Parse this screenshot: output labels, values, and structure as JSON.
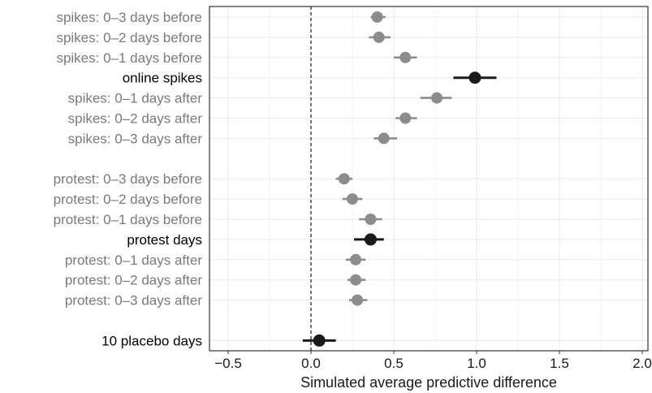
{
  "chart_data": {
    "type": "scatter",
    "subtype": "dot-whisker",
    "title": "",
    "xlabel": "Simulated average predictive difference",
    "ylabel": "",
    "xlim": [
      -0.6,
      2.05
    ],
    "xticks": [
      -0.5,
      0.0,
      0.5,
      1.0,
      1.5,
      2.0
    ],
    "xtick_labels": [
      "−0.5",
      "0.0",
      "0.5",
      "1.0",
      "1.5",
      "2.0"
    ],
    "reference_line": {
      "x": 0.0,
      "style": "dashed"
    },
    "grid": true,
    "legend": "none",
    "colors": {
      "main": "#1a1a1a",
      "secondary": "#8c8c8c",
      "grid": "#ebebeb",
      "panel_border": "#333333"
    },
    "rows": [
      {
        "label": "spikes: 0–3 days before",
        "estimate": 0.4,
        "lower": 0.36,
        "upper": 0.45,
        "highlight": false
      },
      {
        "label": "spikes: 0–2 days before",
        "estimate": 0.41,
        "lower": 0.35,
        "upper": 0.48,
        "highlight": false
      },
      {
        "label": "spikes: 0–1 days before",
        "estimate": 0.57,
        "lower": 0.5,
        "upper": 0.64,
        "highlight": false
      },
      {
        "label": "online spikes",
        "estimate": 0.99,
        "lower": 0.86,
        "upper": 1.12,
        "highlight": true
      },
      {
        "label": "spikes: 0–1 days after",
        "estimate": 0.76,
        "lower": 0.66,
        "upper": 0.85,
        "highlight": false
      },
      {
        "label": "spikes: 0–2 days after",
        "estimate": 0.57,
        "lower": 0.51,
        "upper": 0.64,
        "highlight": false
      },
      {
        "label": "spikes: 0–3 days after",
        "estimate": 0.44,
        "lower": 0.38,
        "upper": 0.52,
        "highlight": false
      },
      {
        "label": "protest: 0–3 days before",
        "estimate": 0.2,
        "lower": 0.15,
        "upper": 0.25,
        "highlight": false
      },
      {
        "label": "protest: 0–2 days before",
        "estimate": 0.25,
        "lower": 0.19,
        "upper": 0.31,
        "highlight": false
      },
      {
        "label": "protest: 0–1 days before",
        "estimate": 0.36,
        "lower": 0.29,
        "upper": 0.43,
        "highlight": false
      },
      {
        "label": "protest days",
        "estimate": 0.36,
        "lower": 0.26,
        "upper": 0.44,
        "highlight": true
      },
      {
        "label": "protest: 0–1 days after",
        "estimate": 0.27,
        "lower": 0.21,
        "upper": 0.33,
        "highlight": false
      },
      {
        "label": "protest: 0–2 days after",
        "estimate": 0.27,
        "lower": 0.22,
        "upper": 0.33,
        "highlight": false
      },
      {
        "label": "protest: 0–3 days after",
        "estimate": 0.28,
        "lower": 0.23,
        "upper": 0.34,
        "highlight": false
      },
      {
        "label": "10 placebo days",
        "estimate": 0.05,
        "lower": -0.05,
        "upper": 0.15,
        "highlight": true
      }
    ]
  }
}
